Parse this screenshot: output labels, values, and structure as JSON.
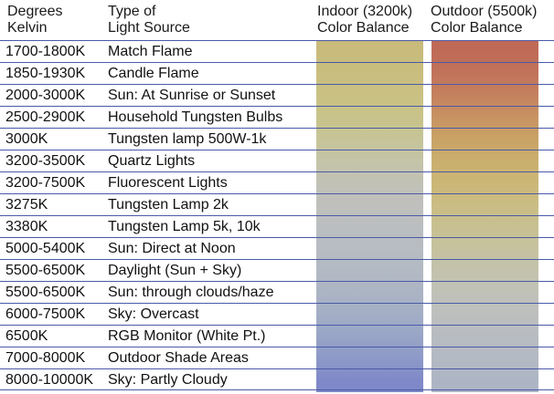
{
  "header": {
    "kelvin_col": "Degrees\nKelvin",
    "source_col": "Type of\nLight Source",
    "indoor_col": "Indoor (3200k)\nColor Balance",
    "outdoor_col": "Outdoor (5500k)\nColor Balance"
  },
  "rows": [
    {
      "kelvin": "1700-1800K",
      "source": "Match Flame",
      "indoor_color": "#c8bb7c",
      "outdoor_color": "#bf6a56"
    },
    {
      "kelvin": "1850-1930K",
      "source": "Candle Flame",
      "indoor_color": "#c9bd7e",
      "outdoor_color": "#c1725a"
    },
    {
      "kelvin": "2000-3000K",
      "source": "Sun: At Sunrise or Sunset",
      "indoor_color": "#c9c183",
      "outdoor_color": "#c5825e"
    },
    {
      "kelvin": "2500-2900K",
      "source": "Household Tungsten Bulbs",
      "indoor_color": "#c8c38a",
      "outdoor_color": "#c89362"
    },
    {
      "kelvin": "3000K",
      "source": "Tungsten lamp 500W-1k",
      "indoor_color": "#c6c497",
      "outdoor_color": "#c9a266"
    },
    {
      "kelvin": "3200-3500K",
      "source": "Quartz Lights",
      "indoor_color": "#c4c4a7",
      "outdoor_color": "#caae6d"
    },
    {
      "kelvin": "3200-7500K",
      "source": "Fluorescent Lights",
      "indoor_color": "#c1c1b6",
      "outdoor_color": "#cbb777"
    },
    {
      "kelvin": "3275K",
      "source": "Tungsten Lamp 2k",
      "indoor_color": "#bfc0bd",
      "outdoor_color": "#cabd84"
    },
    {
      "kelvin": "3380K",
      "source": "Tungsten Lamp 5k, 10k",
      "indoor_color": "#bbbec0",
      "outdoor_color": "#c8c091"
    },
    {
      "kelvin": "5000-5400K",
      "source": "Sun: Direct at Noon",
      "indoor_color": "#b7bcc2",
      "outdoor_color": "#c6c29e"
    },
    {
      "kelvin": "5500-6500K",
      "source": "Daylight (Sun + Sky)",
      "indoor_color": "#b2b9c3",
      "outdoor_color": "#c3c2ad"
    },
    {
      "kelvin": "5500-6500K",
      "source": "Sun: through clouds/haze",
      "indoor_color": "#abb4c4",
      "outdoor_color": "#c0c1b8"
    },
    {
      "kelvin": "6000-7500K",
      "source": "Sky: Overcast",
      "indoor_color": "#a3aec5",
      "outdoor_color": "#bcbfbe"
    },
    {
      "kelvin": "6500K",
      "source": "RGB Monitor (White Pt.)",
      "indoor_color": "#98a5c6",
      "outdoor_color": "#b8bcc1"
    },
    {
      "kelvin": "7000-8000K",
      "source": "Outdoor Shade Areas",
      "indoor_color": "#8c98c8",
      "outdoor_color": "#b3b9c3"
    },
    {
      "kelvin": "8000-10000K",
      "source": "Sky: Partly Cloudy",
      "indoor_color": "#7f88c8",
      "outdoor_color": "#adb5c4"
    }
  ],
  "colors": {
    "rule_line": "#4a5aa8",
    "background": "#ffffff"
  }
}
